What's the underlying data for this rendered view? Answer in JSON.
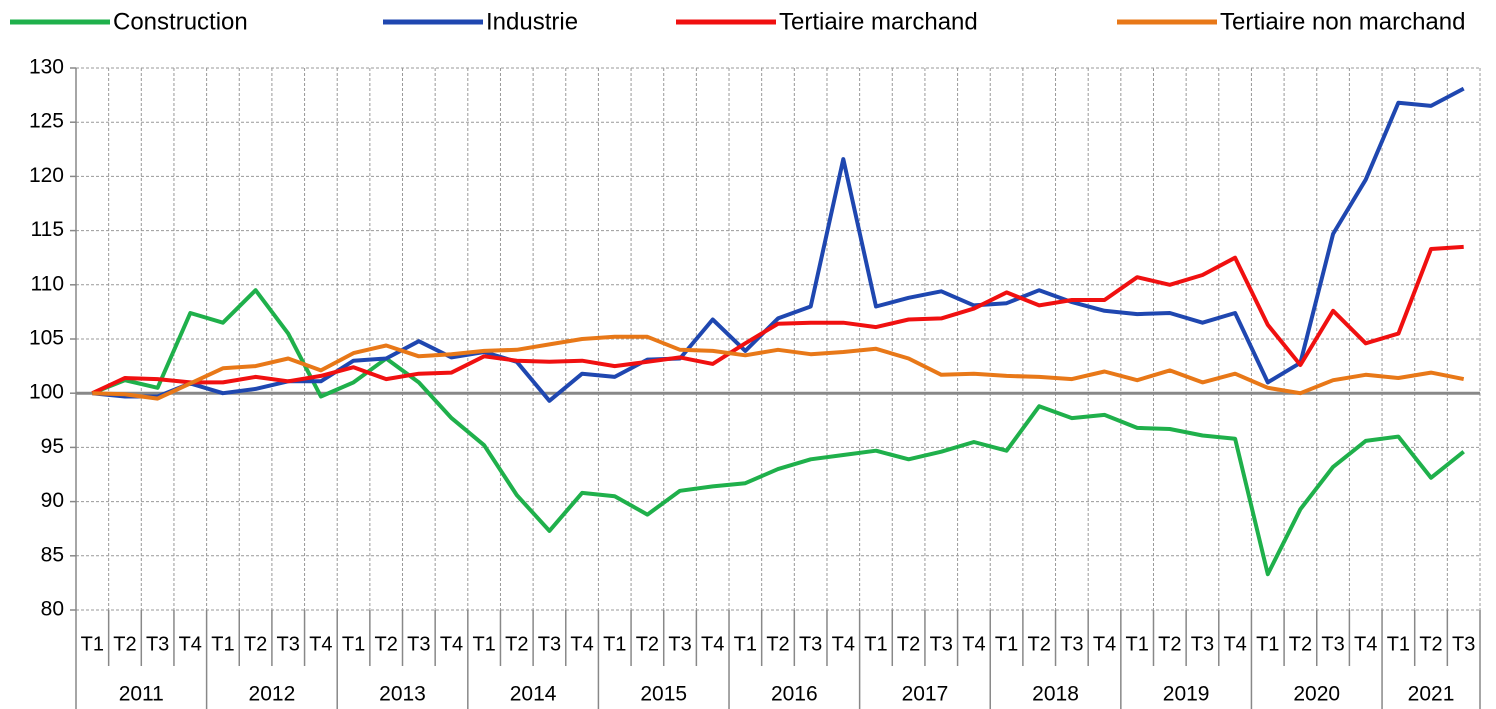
{
  "chart_data": {
    "type": "line",
    "categories": [
      "T1",
      "T2",
      "T3",
      "T4",
      "T1",
      "T2",
      "T3",
      "T4",
      "T1",
      "T2",
      "T3",
      "T4",
      "T1",
      "T2",
      "T3",
      "T4",
      "T1",
      "T2",
      "T3",
      "T4",
      "T1",
      "T2",
      "T3",
      "T4",
      "T1",
      "T2",
      "T3",
      "T4",
      "T1",
      "T2",
      "T3",
      "T4",
      "T1",
      "T2",
      "T3",
      "T4",
      "T1",
      "T2",
      "T3",
      "T4",
      "T1",
      "T2",
      "T3"
    ],
    "years": [
      "2011",
      "2012",
      "2013",
      "2014",
      "2015",
      "2016",
      "2017",
      "2018",
      "2019",
      "2020",
      "2021"
    ],
    "series": [
      {
        "name": "Construction",
        "color": "#1fb04b",
        "values": [
          100,
          101.2,
          100.5,
          107.4,
          106.5,
          109.5,
          105.5,
          99.7,
          101,
          103.2,
          101,
          97.7,
          95.2,
          90.6,
          87.3,
          90.8,
          90.5,
          88.8,
          91,
          91.4,
          91.7,
          93,
          93.9,
          94.3,
          94.7,
          93.9,
          94.6,
          95.5,
          94.7,
          98.8,
          97.7,
          98,
          96.8,
          96.7,
          96.1,
          95.8,
          83.3,
          89.3,
          93.2,
          95.6,
          96,
          92.2,
          94.6
        ]
      },
      {
        "name": "Industrie",
        "color": "#1f47b0",
        "values": [
          100,
          99.7,
          99.7,
          100.9,
          100,
          100.4,
          101.1,
          101.1,
          103,
          103.2,
          104.8,
          103.3,
          103.8,
          102.9,
          99.3,
          101.8,
          101.5,
          103.1,
          103.2,
          106.8,
          103.9,
          106.9,
          108,
          121.6,
          108,
          108.8,
          109.4,
          108.1,
          108.3,
          109.5,
          108.4,
          107.6,
          107.3,
          107.4,
          106.5,
          107.4,
          101,
          102.8,
          114.7,
          119.7,
          126.8,
          126.5,
          128.1
        ]
      },
      {
        "name": "Tertiaire marchand",
        "color": "#f01010",
        "values": [
          100,
          101.4,
          101.3,
          101,
          101,
          101.5,
          101.1,
          101.6,
          102.4,
          101.3,
          101.8,
          101.9,
          103.4,
          103,
          102.9,
          103,
          102.5,
          102.9,
          103.3,
          102.7,
          104.6,
          106.4,
          106.5,
          106.5,
          106.1,
          106.8,
          106.9,
          107.8,
          109.3,
          108.1,
          108.6,
          108.6,
          110.7,
          110,
          110.9,
          112.5,
          106.3,
          102.6,
          107.6,
          104.6,
          105.5,
          113.3,
          113.5
        ]
      },
      {
        "name": "Tertiaire non marchand",
        "color": "#e87818",
        "values": [
          100,
          99.9,
          99.5,
          100.9,
          102.3,
          102.5,
          103.2,
          102.1,
          103.7,
          104.4,
          103.4,
          103.6,
          103.9,
          104,
          104.5,
          105,
          105.2,
          105.2,
          104,
          103.9,
          103.5,
          104,
          103.6,
          103.8,
          104.1,
          103.2,
          101.7,
          101.8,
          101.6,
          101.5,
          101.3,
          102,
          101.2,
          102.1,
          101,
          101.8,
          100.5,
          100,
          101.2,
          101.7,
          101.4,
          101.9,
          101.3
        ]
      }
    ],
    "ylim": [
      80,
      130
    ],
    "yticks": [
      80,
      85,
      90,
      95,
      100,
      105,
      110,
      115,
      120,
      125,
      130
    ],
    "x_axis_at": 100,
    "grid": true,
    "legend": "top"
  }
}
